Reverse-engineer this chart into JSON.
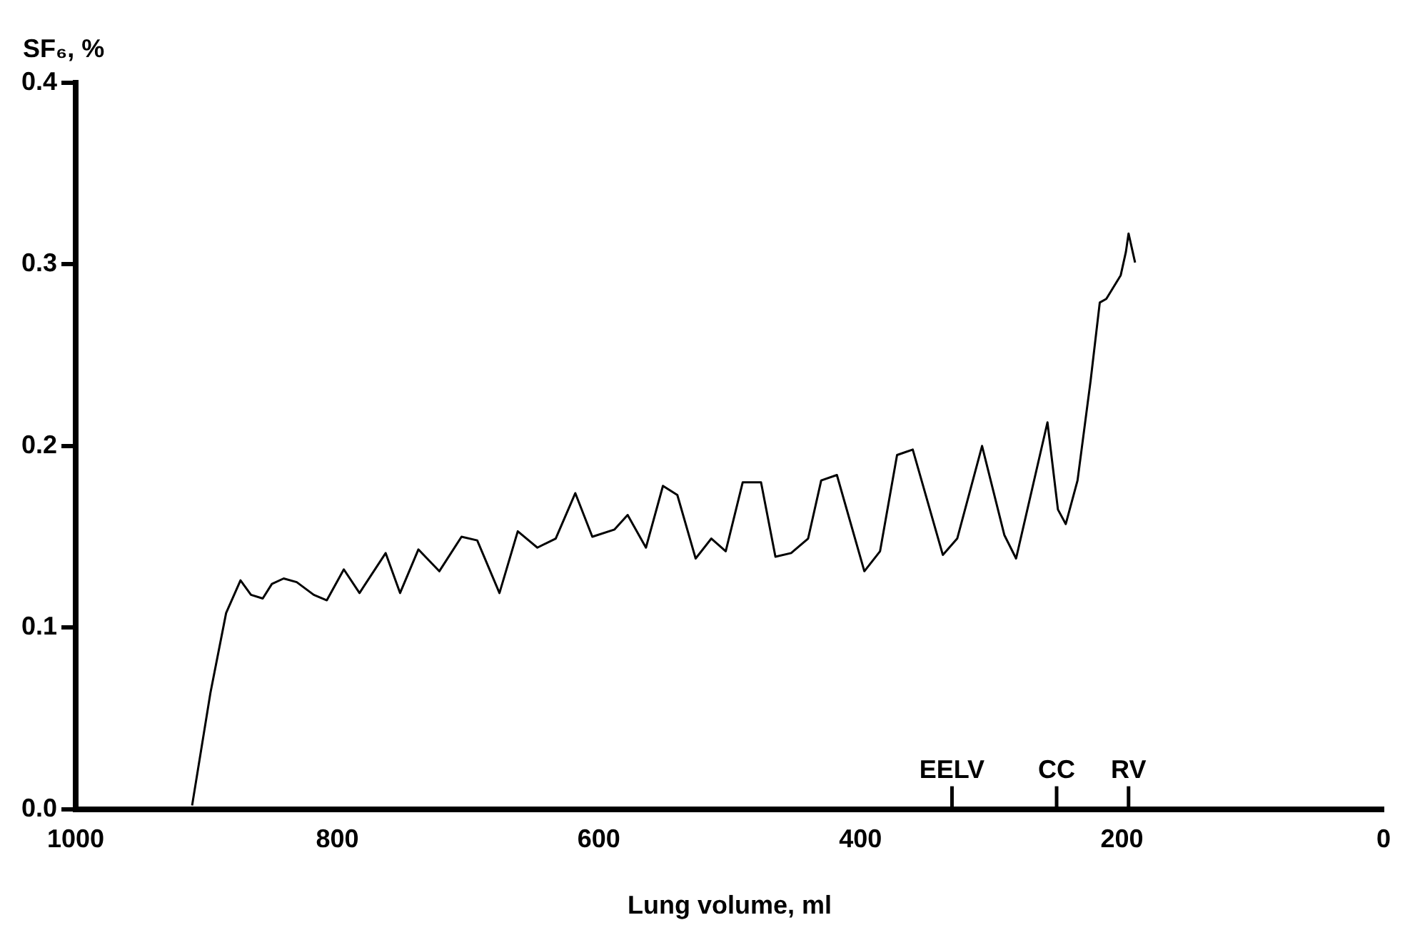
{
  "chart_data": {
    "type": "line",
    "xlabel": "Lung volume, ml",
    "ylabel": "SF₆, %",
    "xlim": [
      1000,
      0
    ],
    "xticks": [
      1000,
      800,
      600,
      400,
      200,
      0
    ],
    "ylim": [
      0,
      0.4
    ],
    "yticks": [
      {
        "value": 0,
        "label": "0.0"
      },
      0.1,
      0.2,
      0.3,
      0.4
    ],
    "grid": false,
    "legend": false,
    "line_style": "solid",
    "ref_lines": [
      {
        "axis": "x",
        "value": 330,
        "label": "EELV"
      },
      {
        "axis": "x",
        "value": 250,
        "label": "CC"
      },
      {
        "axis": "x",
        "value": 195,
        "label": "RV"
      }
    ],
    "series": [
      {
        "color": "#000000",
        "x": [
          911,
          897,
          885,
          874,
          866,
          857,
          850,
          841,
          831,
          818,
          808,
          795,
          783,
          763,
          752,
          738,
          722,
          705,
          693,
          676,
          662,
          647,
          633,
          618,
          605,
          588,
          578,
          564,
          551,
          540,
          526,
          514,
          503,
          490,
          476,
          465,
          453,
          440,
          430,
          418,
          397,
          385,
          372,
          360,
          337,
          326,
          307,
          290,
          281,
          257,
          249,
          243,
          234,
          224,
          217,
          212,
          201,
          197,
          195,
          190
        ],
        "values": [
          0.002,
          0.064,
          0.108,
          0.126,
          0.118,
          0.116,
          0.124,
          0.127,
          0.125,
          0.118,
          0.115,
          0.132,
          0.119,
          0.141,
          0.119,
          0.143,
          0.131,
          0.15,
          0.148,
          0.119,
          0.153,
          0.144,
          0.149,
          0.174,
          0.15,
          0.154,
          0.162,
          0.144,
          0.178,
          0.173,
          0.138,
          0.149,
          0.142,
          0.18,
          0.18,
          0.139,
          0.141,
          0.149,
          0.181,
          0.184,
          0.131,
          0.142,
          0.195,
          0.198,
          0.14,
          0.149,
          0.2,
          0.151,
          0.138,
          0.213,
          0.165,
          0.157,
          0.181,
          0.236,
          0.279,
          0.281,
          0.294,
          0.307,
          0.317,
          0.301
        ]
      }
    ]
  }
}
